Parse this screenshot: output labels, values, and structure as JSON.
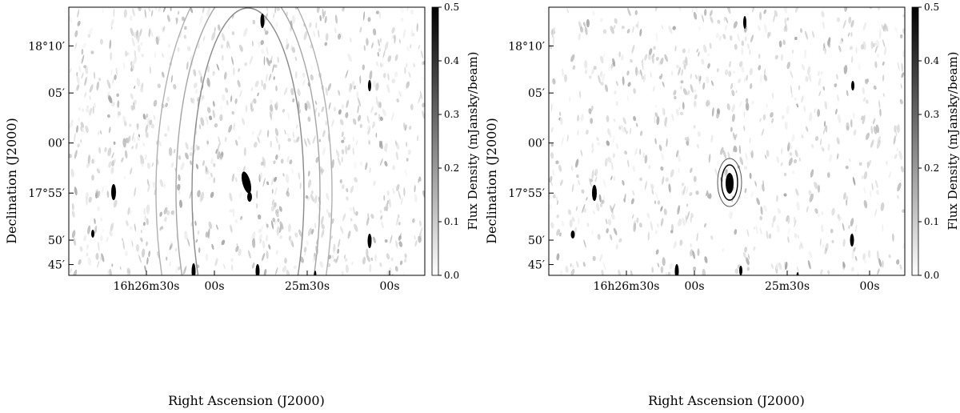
{
  "figure": {
    "panels": [
      {
        "id": "left",
        "xlabel": "Right Ascension (J2000)",
        "ylabel": "Declination (J2000)",
        "x_ticks": [
          "16h26m30s",
          "00s",
          "25m30s",
          "00s"
        ],
        "y_ticks": [
          "18°10′",
          "05′",
          "00′",
          "17°55′",
          "50′",
          "45′"
        ],
        "colorbar": {
          "label": "Flux Density (mJansky/beam)",
          "ticks": [
            "0.0",
            "0.1",
            "0.2",
            "0.3",
            "0.4",
            "0.5"
          ],
          "range": [
            0.0,
            0.5
          ],
          "colormap": "grayscale (white to black)"
        },
        "image_style": "interferometric map with concentric sidelobe arcs around bright central source"
      },
      {
        "id": "right",
        "xlabel": "Right Ascension (J2000)",
        "ylabel": "Declination (J2000)",
        "x_ticks": [
          "16h26m30s",
          "00s",
          "25m30s",
          "00s"
        ],
        "y_ticks": [
          "18°10′",
          "05′",
          "00′",
          "17°55′",
          "50′",
          "45′"
        ],
        "colorbar": {
          "label": "Flux Density (mJansky/beam)",
          "ticks": [
            "0.0",
            "0.1",
            "0.2",
            "0.3",
            "0.4",
            "0.5"
          ],
          "range": [
            0.0,
            0.5
          ],
          "colormap": "grayscale (white to black)"
        },
        "image_style": "cleaner interferometric map with compact central source and faint ring"
      }
    ],
    "colors": {
      "axis": "#000000",
      "background": "#ffffff",
      "noise": "#9a9a9a",
      "source": "#000000"
    }
  }
}
